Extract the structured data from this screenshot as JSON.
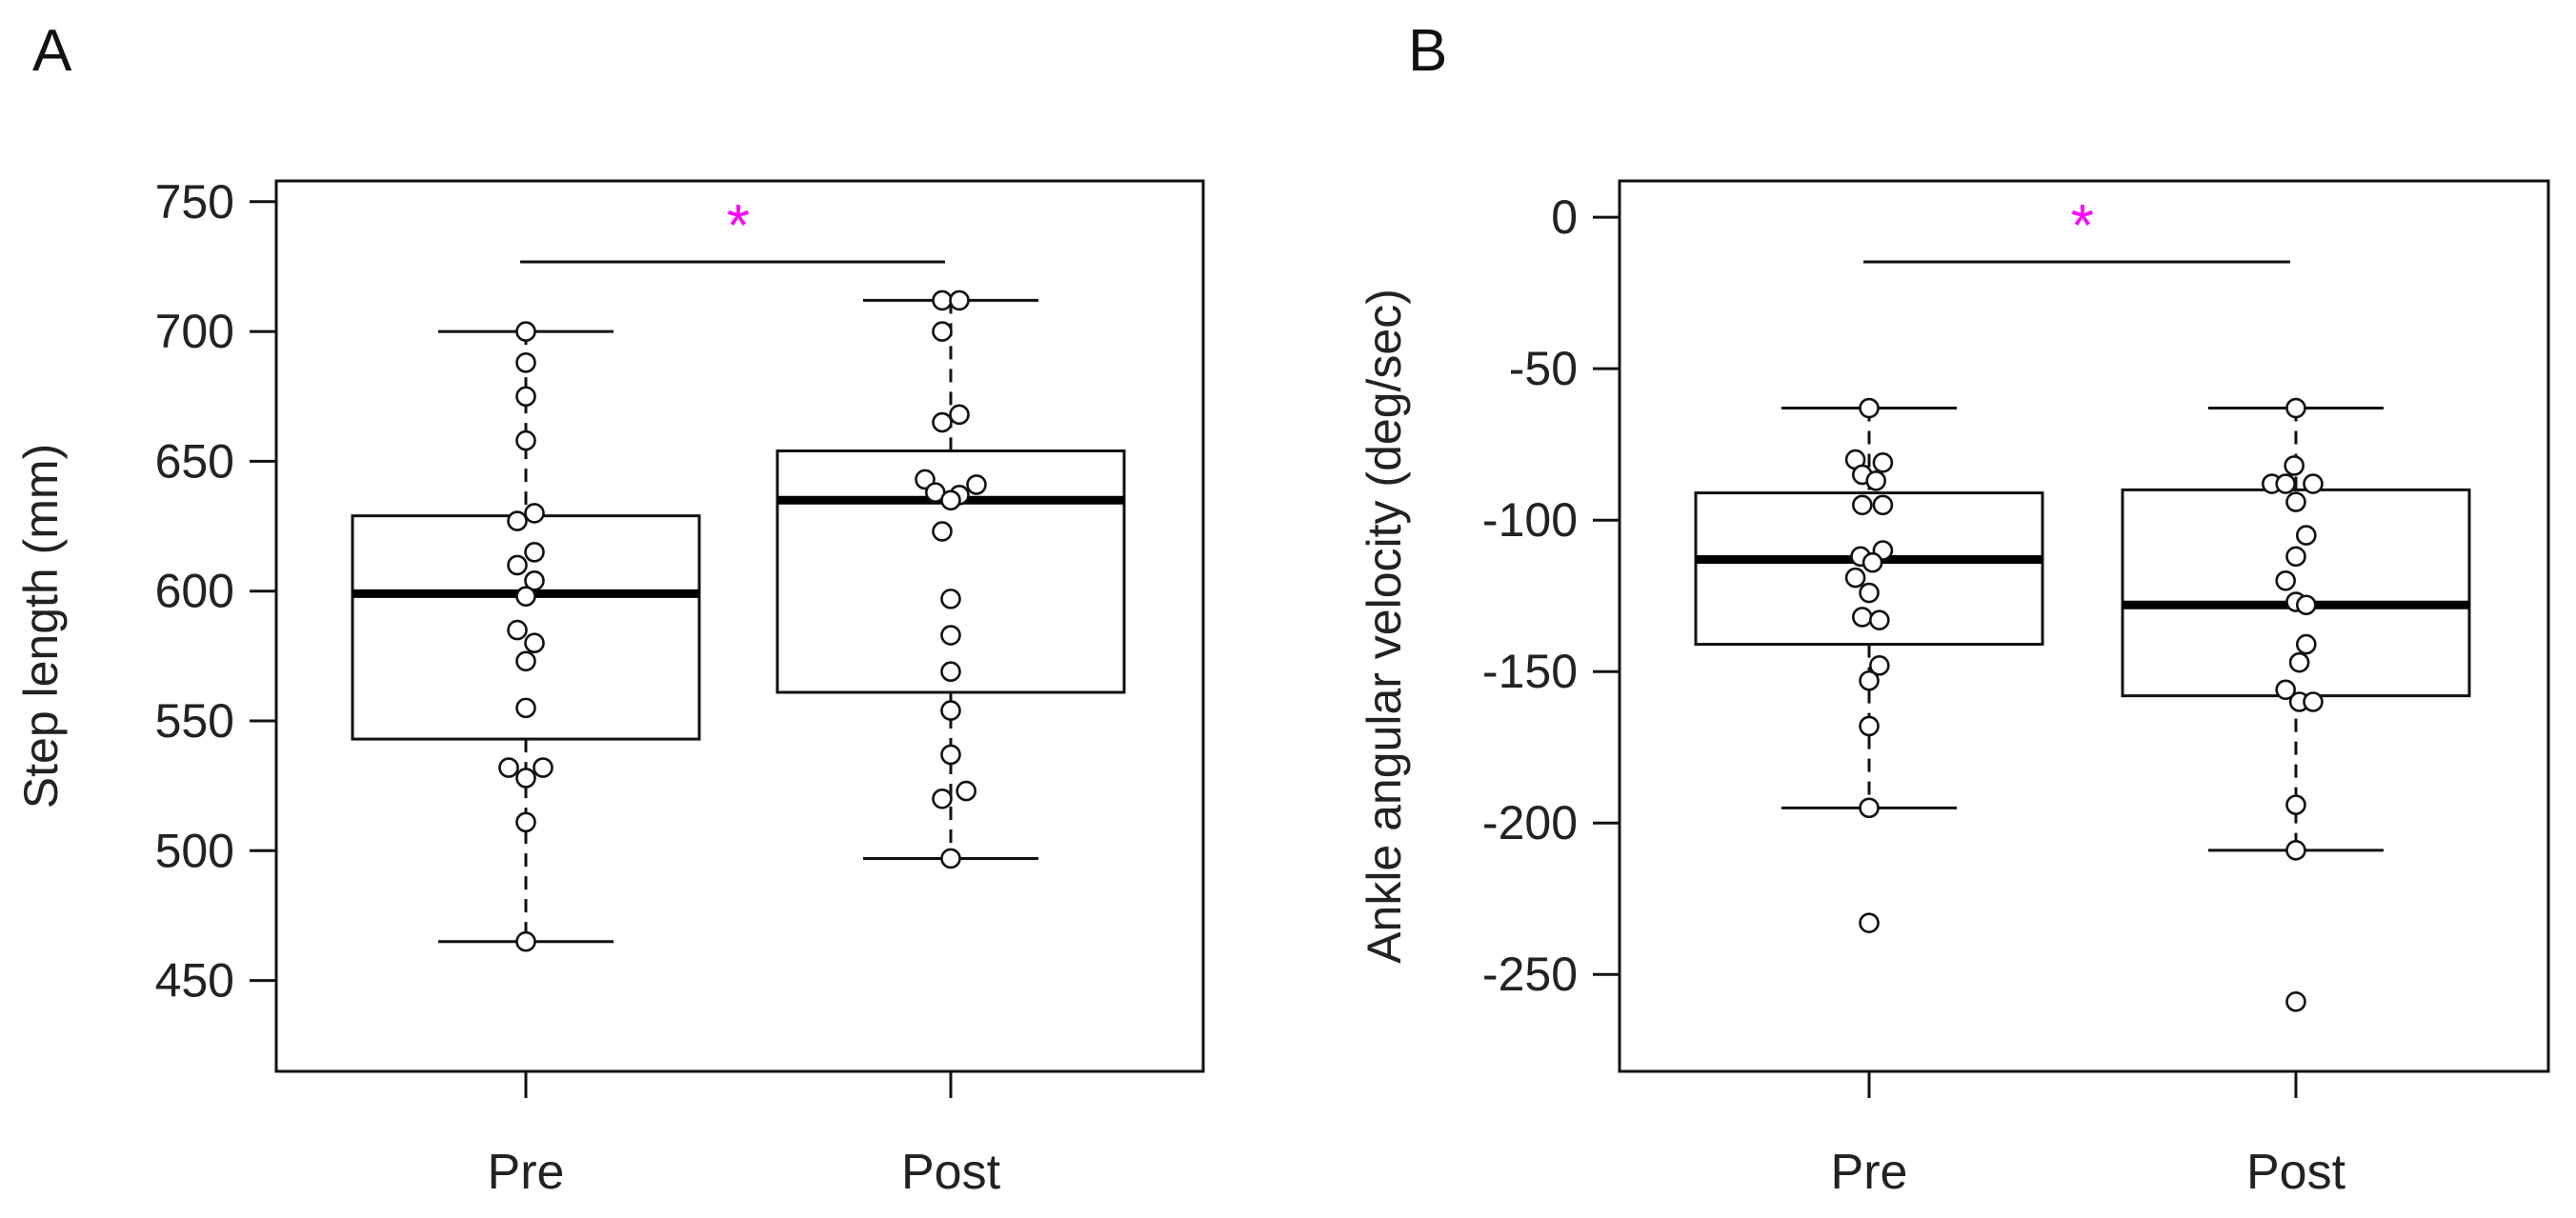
{
  "chart_data": [
    {
      "panel": "A",
      "type": "boxplot",
      "ylabel": "Step length (mm)",
      "ylim": [
        415,
        758
      ],
      "yticks": [
        450,
        500,
        550,
        600,
        650,
        700,
        750
      ],
      "categories": [
        "Pre",
        "Post"
      ],
      "significance": "*",
      "significance_color": "#ff00ff",
      "groups": [
        {
          "name": "Pre",
          "whisker_low": 465,
          "q1": 543,
          "median": 599,
          "q3": 629,
          "whisker_high": 700,
          "points": [
            {
              "x": 0,
              "y": 700
            },
            {
              "x": 0,
              "y": 688
            },
            {
              "x": 0,
              "y": 675
            },
            {
              "x": 0,
              "y": 658
            },
            {
              "x": 0.5,
              "y": 630
            },
            {
              "x": -0.5,
              "y": 627
            },
            {
              "x": 0.5,
              "y": 615
            },
            {
              "x": -0.5,
              "y": 610
            },
            {
              "x": 0.5,
              "y": 604
            },
            {
              "x": 0,
              "y": 598
            },
            {
              "x": -0.5,
              "y": 585
            },
            {
              "x": 0.5,
              "y": 580
            },
            {
              "x": 0,
              "y": 573
            },
            {
              "x": 0,
              "y": 555
            },
            {
              "x": -1,
              "y": 532
            },
            {
              "x": 1,
              "y": 532
            },
            {
              "x": 0,
              "y": 528
            },
            {
              "x": 0,
              "y": 511
            },
            {
              "x": 0,
              "y": 465
            }
          ]
        },
        {
          "name": "Post",
          "whisker_low": 497,
          "q1": 561,
          "median": 635,
          "q3": 654,
          "whisker_high": 712,
          "points": [
            {
              "x": -0.5,
              "y": 712
            },
            {
              "x": 0.5,
              "y": 712
            },
            {
              "x": -0.5,
              "y": 700
            },
            {
              "x": 0.5,
              "y": 668
            },
            {
              "x": -0.5,
              "y": 665
            },
            {
              "x": -1.5,
              "y": 643
            },
            {
              "x": 1.5,
              "y": 641
            },
            {
              "x": -0.9,
              "y": 638
            },
            {
              "x": 0.5,
              "y": 637
            },
            {
              "x": 0,
              "y": 635
            },
            {
              "x": -0.5,
              "y": 623
            },
            {
              "x": 0,
              "y": 597
            },
            {
              "x": 0,
              "y": 583
            },
            {
              "x": 0,
              "y": 569
            },
            {
              "x": 0,
              "y": 554
            },
            {
              "x": 0,
              "y": 537
            },
            {
              "x": 0.9,
              "y": 523
            },
            {
              "x": -0.5,
              "y": 520
            },
            {
              "x": 0,
              "y": 497
            }
          ]
        }
      ]
    },
    {
      "panel": "B",
      "type": "boxplot",
      "ylabel": "Ankle angular velocity (deg/sec)",
      "ylim": [
        -282,
        12
      ],
      "yticks": [
        -250,
        -200,
        -150,
        -100,
        -50,
        0
      ],
      "categories": [
        "Pre",
        "Post"
      ],
      "significance": "*",
      "significance_color": "#ff00ff",
      "groups": [
        {
          "name": "Pre",
          "whisker_low": -195,
          "q1": -141,
          "median": -113,
          "q3": -91,
          "whisker_high": -63,
          "points": [
            {
              "x": 0,
              "y": -63
            },
            {
              "x": -0.8,
              "y": -80
            },
            {
              "x": 0.8,
              "y": -81
            },
            {
              "x": -0.4,
              "y": -85
            },
            {
              "x": 0.4,
              "y": -87
            },
            {
              "x": -0.4,
              "y": -95
            },
            {
              "x": 0.8,
              "y": -95
            },
            {
              "x": 0.8,
              "y": -110
            },
            {
              "x": -0.5,
              "y": -112
            },
            {
              "x": 0.2,
              "y": -114
            },
            {
              "x": -0.8,
              "y": -119
            },
            {
              "x": 0,
              "y": -124
            },
            {
              "x": -0.4,
              "y": -132
            },
            {
              "x": 0.6,
              "y": -133
            },
            {
              "x": 0.6,
              "y": -148
            },
            {
              "x": 0,
              "y": -153
            },
            {
              "x": 0,
              "y": -168
            },
            {
              "x": 0,
              "y": -195
            },
            {
              "x": 0,
              "y": -233
            }
          ]
        },
        {
          "name": "Post",
          "whisker_low": -209,
          "q1": -158,
          "median": -128,
          "q3": -90,
          "whisker_high": -63,
          "points": [
            {
              "x": 0,
              "y": -63
            },
            {
              "x": -0.1,
              "y": -82
            },
            {
              "x": -1.4,
              "y": -88
            },
            {
              "x": -0.6,
              "y": -88
            },
            {
              "x": 1,
              "y": -88
            },
            {
              "x": 0,
              "y": -94
            },
            {
              "x": 0.6,
              "y": -105
            },
            {
              "x": 0,
              "y": -112
            },
            {
              "x": -0.6,
              "y": -120
            },
            {
              "x": 0,
              "y": -127
            },
            {
              "x": 0.6,
              "y": -128
            },
            {
              "x": 0.6,
              "y": -141
            },
            {
              "x": 0.2,
              "y": -147
            },
            {
              "x": -0.6,
              "y": -156
            },
            {
              "x": 0.2,
              "y": -160
            },
            {
              "x": 1,
              "y": -160
            },
            {
              "x": 0,
              "y": -194
            },
            {
              "x": 0,
              "y": -209
            },
            {
              "x": 0,
              "y": -259
            }
          ]
        }
      ]
    }
  ]
}
